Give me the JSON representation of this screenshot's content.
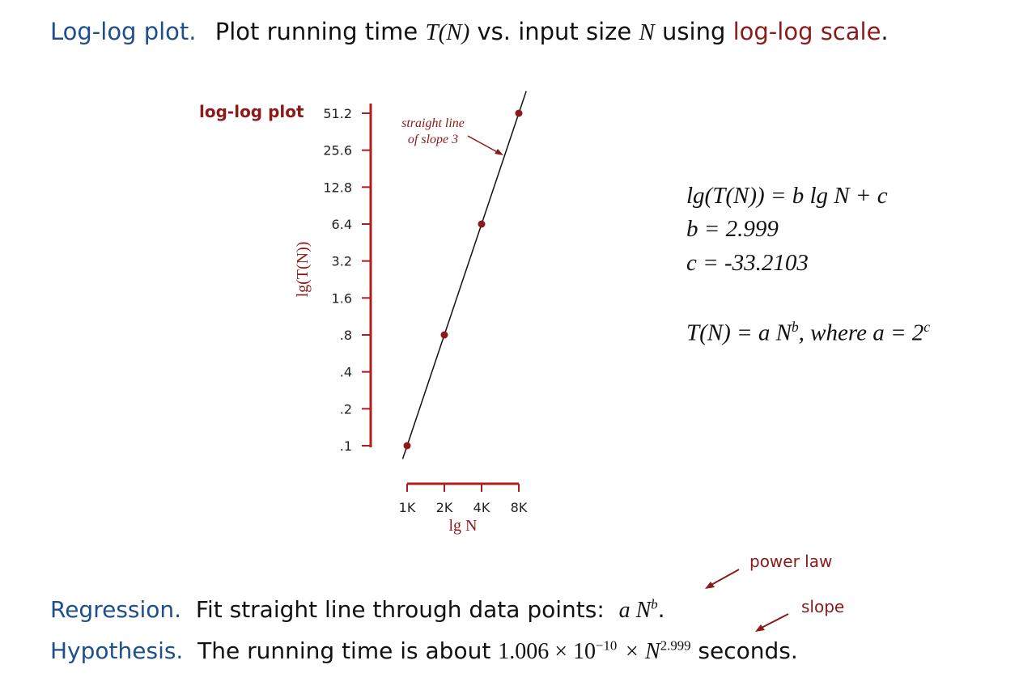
{
  "headline": {
    "term": "Log-log plot.",
    "text_before": "Plot running time",
    "tn": "T(N)",
    "vs": "vs. input size",
    "n": "N",
    "using": "using",
    "scale": "log-log scale",
    "period": "."
  },
  "chart_data": {
    "type": "line",
    "title": "log-log plot",
    "xlabel": "lg N",
    "ylabel": "lg(T(N))",
    "x_ticks": [
      "1K",
      "2K",
      "4K",
      "8K"
    ],
    "y_ticks": [
      ".1",
      ".2",
      ".4",
      ".8",
      "1.6",
      "3.2",
      "6.4",
      "12.8",
      "25.6",
      "51.2"
    ],
    "x_scale": "log2",
    "y_scale": "log2",
    "xlim": [
      1000,
      8000
    ],
    "ylim": [
      0.1,
      51.2
    ],
    "points": [
      {
        "x": 1000,
        "y": 0.1
      },
      {
        "x": 2000,
        "y": 0.8
      },
      {
        "x": 4000,
        "y": 6.4
      },
      {
        "x": 8000,
        "y": 51.2
      }
    ],
    "fit": {
      "slope": 3
    },
    "annotation": {
      "line1": "straight line",
      "line2": "of slope 3"
    },
    "colors": {
      "axis": "#b01c1c",
      "point": "#8b1a1a",
      "line": "#111111"
    }
  },
  "equations": {
    "eq1": "lg(T(N)) =  b lg N  + c",
    "eq2": "b = 2.999",
    "eq3": "c = -33.2103",
    "eq4_main": "T(N) =  a N",
    "eq4_exp": "b",
    "eq4_tail": ", where a = 2",
    "eq4_tail_exp": "c"
  },
  "regression": {
    "term": "Regression.",
    "text": "Fit straight line through data points:",
    "formula_main": "a N",
    "formula_exp": "b",
    "period": ".",
    "annotation": "power law"
  },
  "hypothesis": {
    "term": "Hypothesis.",
    "text": "The running time is about",
    "coef": "1.006 × 10",
    "coef_exp": "−10",
    "times_n": "× N",
    "n_exp": "2.999",
    "unit": "seconds.",
    "annotation": "slope"
  }
}
